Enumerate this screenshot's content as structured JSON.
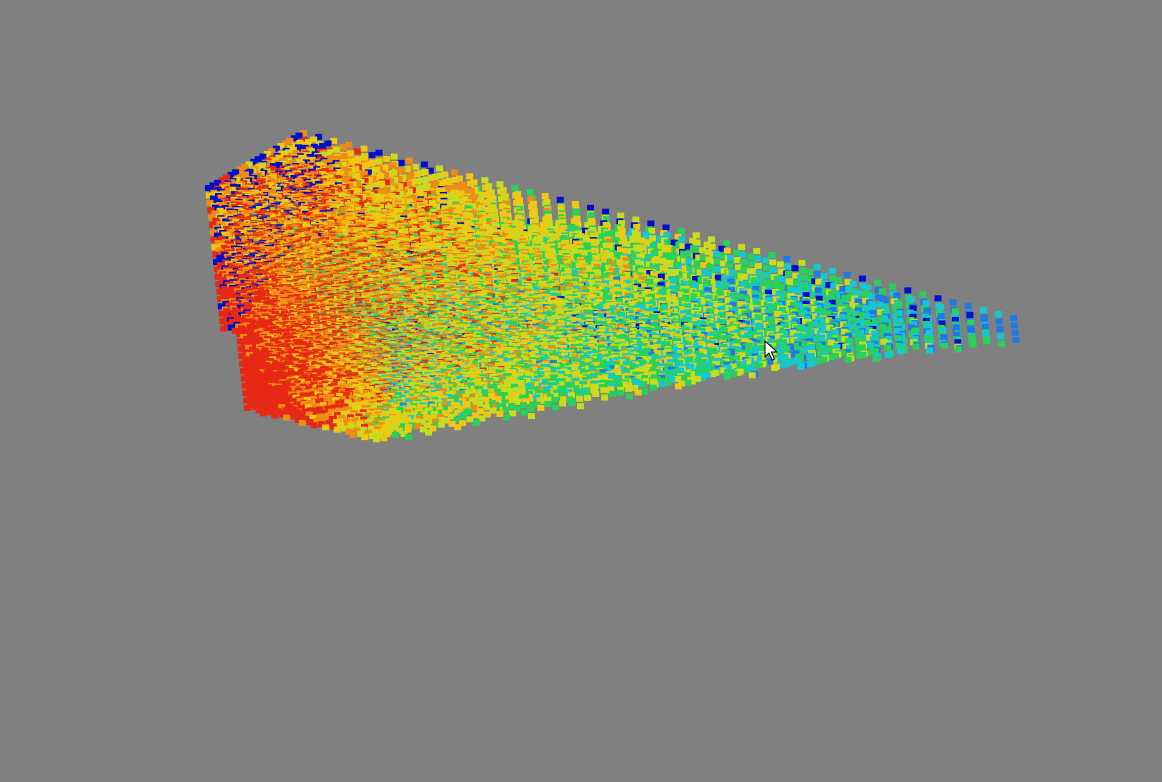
{
  "scene": {
    "background_color": "#808080",
    "render_style": "voxel-point-cloud",
    "colormap": "jet",
    "colormap_colors": [
      "#0010c8",
      "#1e78e6",
      "#14c8d2",
      "#28d25a",
      "#c8dc1e",
      "#f0c814",
      "#f08c14",
      "#e62814"
    ]
  },
  "cursor": {
    "type": "arrow-pointer",
    "color": "#ffffff",
    "outline_color": "#000000"
  }
}
